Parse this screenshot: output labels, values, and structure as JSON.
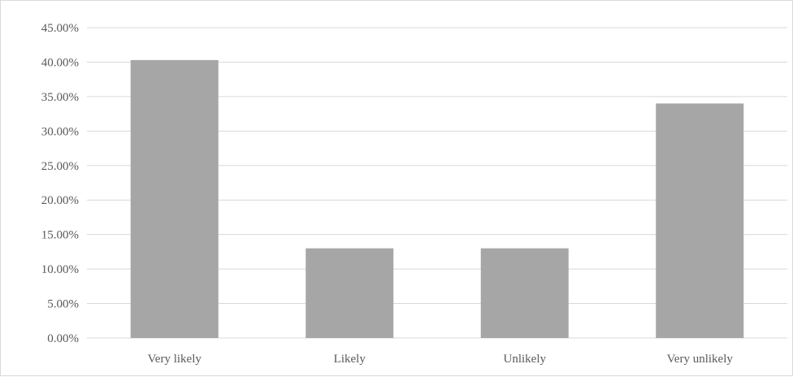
{
  "chart_data": {
    "type": "bar",
    "title": "",
    "xlabel": "",
    "ylabel": "",
    "categories": [
      "Very likely",
      "Likely",
      "Unlikely",
      "Very unlikely"
    ],
    "values": [
      40.3,
      13.0,
      13.0,
      34.0
    ],
    "ylim": [
      0,
      45
    ],
    "y_ticks": [
      "0.00%",
      "5.00%",
      "10.00%",
      "15.00%",
      "20.00%",
      "25.00%",
      "30.00%",
      "35.00%",
      "40.00%",
      "45.00%"
    ],
    "y_tick_step": 5,
    "grid": true,
    "legend": "none",
    "bar_color": "#a6a6a6",
    "grid_color": "#d9d9d9"
  }
}
